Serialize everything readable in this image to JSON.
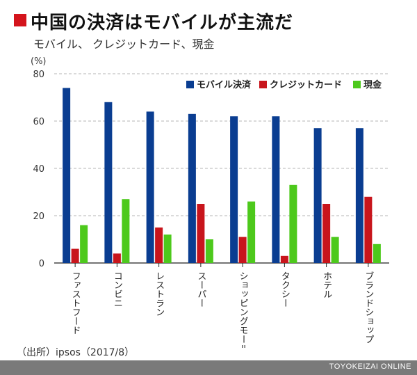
{
  "header": {
    "title": "中国の決済はモバイルが主流だ",
    "subtitle": "モバイル、 クレジットカード、現金",
    "accent_color": "#d4141c"
  },
  "chart_data": {
    "type": "bar",
    "categories": [
      "ファストフード",
      "コンビニ",
      "レストラン",
      "スーパー",
      "ショッピングモール",
      "タクシー",
      "ホテル",
      "ブランドショップ"
    ],
    "series": [
      {
        "name": "モバイル決済",
        "color": "#0a3d91",
        "values": [
          74,
          68,
          64,
          63,
          62,
          62,
          57,
          57
        ]
      },
      {
        "name": "クレジットカード",
        "color": "#c8151c",
        "values": [
          6,
          4,
          15,
          25,
          11,
          3,
          25,
          28
        ]
      },
      {
        "name": "現金",
        "color": "#4dc91c",
        "values": [
          16,
          27,
          12,
          10,
          26,
          33,
          11,
          8
        ]
      }
    ],
    "ylabel": "(%)",
    "ylim": [
      0,
      80
    ],
    "yticks": [
      0,
      20,
      40,
      60,
      80
    ],
    "grid": true,
    "legend": "top-right"
  },
  "source": "（出所）ipsos（2017/8）",
  "footer": {
    "brand": "TOYOKEIZAI ONLINE"
  }
}
